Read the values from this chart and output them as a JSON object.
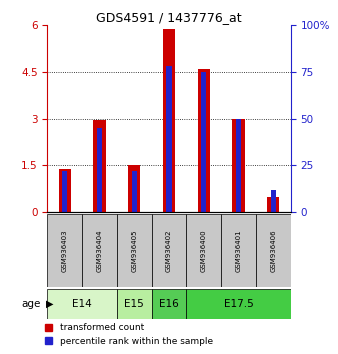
{
  "title": "GDS4591 / 1437776_at",
  "samples": [
    "GSM936403",
    "GSM936404",
    "GSM936405",
    "GSM936402",
    "GSM936400",
    "GSM936401",
    "GSM936406"
  ],
  "transformed_count": [
    1.4,
    2.95,
    1.5,
    5.85,
    4.6,
    3.0,
    0.5
  ],
  "percentile_rank": [
    22,
    45,
    22,
    78,
    75,
    50,
    12
  ],
  "age_groups": [
    {
      "label": "E14",
      "start": 0,
      "end": 2,
      "color": "#d8f5c8"
    },
    {
      "label": "E15",
      "start": 2,
      "end": 3,
      "color": "#b8eea0"
    },
    {
      "label": "E16",
      "start": 3,
      "end": 4,
      "color": "#55cc55"
    },
    {
      "label": "E17.5",
      "start": 4,
      "end": 7,
      "color": "#44cc44"
    }
  ],
  "ylim_left": [
    0,
    6
  ],
  "ylim_right": [
    0,
    100
  ],
  "yticks_left": [
    0,
    1.5,
    3.0,
    4.5,
    6.0
  ],
  "yticks_right": [
    0,
    25,
    50,
    75,
    100
  ],
  "bar_color_red": "#cc0000",
  "bar_color_blue": "#2222cc",
  "red_bar_width": 0.35,
  "blue_bar_width": 0.15,
  "legend_red": "transformed count",
  "legend_blue": "percentile rank within the sample",
  "left_tick_color": "#cc0000",
  "right_tick_color": "#2222cc",
  "age_label": "age",
  "sample_box_color": "#c8c8c8",
  "ytick_labels_left": [
    "0",
    "1.5",
    "3",
    "4.5",
    "6"
  ],
  "ytick_labels_right": [
    "0",
    "25",
    "50",
    "75",
    "100%"
  ]
}
